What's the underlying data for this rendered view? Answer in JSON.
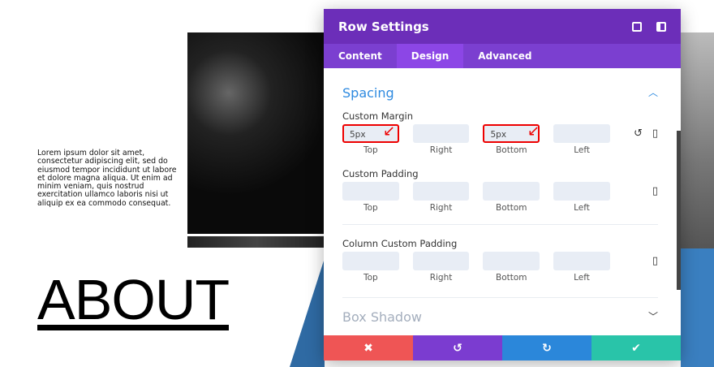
{
  "page": {
    "lorem": "Lorem ipsum dolor sit amet, consectetur adipiscing elit, sed do eiusmod tempor incididunt ut labore et dolore magna aliqua. Ut enim ad minim veniam, quis nostrud exercitation ullamco laboris nisi ut aliquip ex ea commodo consequat.",
    "heading": "ABOUT"
  },
  "modal": {
    "title": "Row Settings",
    "header_icons": [
      "fullscreen-icon",
      "sidebar-layout-icon"
    ],
    "tabs": [
      {
        "label": "Content"
      },
      {
        "label": "Design",
        "active": true
      },
      {
        "label": "Advanced"
      }
    ],
    "spacing": {
      "title": "Spacing",
      "groups": [
        {
          "label": "Custom Margin",
          "fields": [
            {
              "label": "Top",
              "value": "5px",
              "highlighted": true
            },
            {
              "label": "Right",
              "value": ""
            },
            {
              "label": "Bottom",
              "value": "5px",
              "highlighted": true
            },
            {
              "label": "Left",
              "value": ""
            }
          ]
        },
        {
          "label": "Custom Padding",
          "fields": [
            {
              "label": "Top",
              "value": ""
            },
            {
              "label": "Right",
              "value": ""
            },
            {
              "label": "Bottom",
              "value": ""
            },
            {
              "label": "Left",
              "value": ""
            }
          ]
        },
        {
          "label": "Column Custom Padding",
          "fields": [
            {
              "label": "Top",
              "value": ""
            },
            {
              "label": "Right",
              "value": ""
            },
            {
              "label": "Bottom",
              "value": ""
            },
            {
              "label": "Left",
              "value": ""
            }
          ]
        }
      ]
    },
    "box_shadow": {
      "title": "Box Shadow"
    },
    "footer": {
      "cancel": "✖",
      "undo": "↺",
      "redo": "↻",
      "save": "✔"
    },
    "colors": {
      "header": "#6c2eb9",
      "tabs": "#7b3fd0",
      "accent": "#2e8ae0",
      "cancel": "#ef5555",
      "undo": "#7b3cd0",
      "redo": "#2b87da",
      "save": "#29c4a9"
    }
  }
}
